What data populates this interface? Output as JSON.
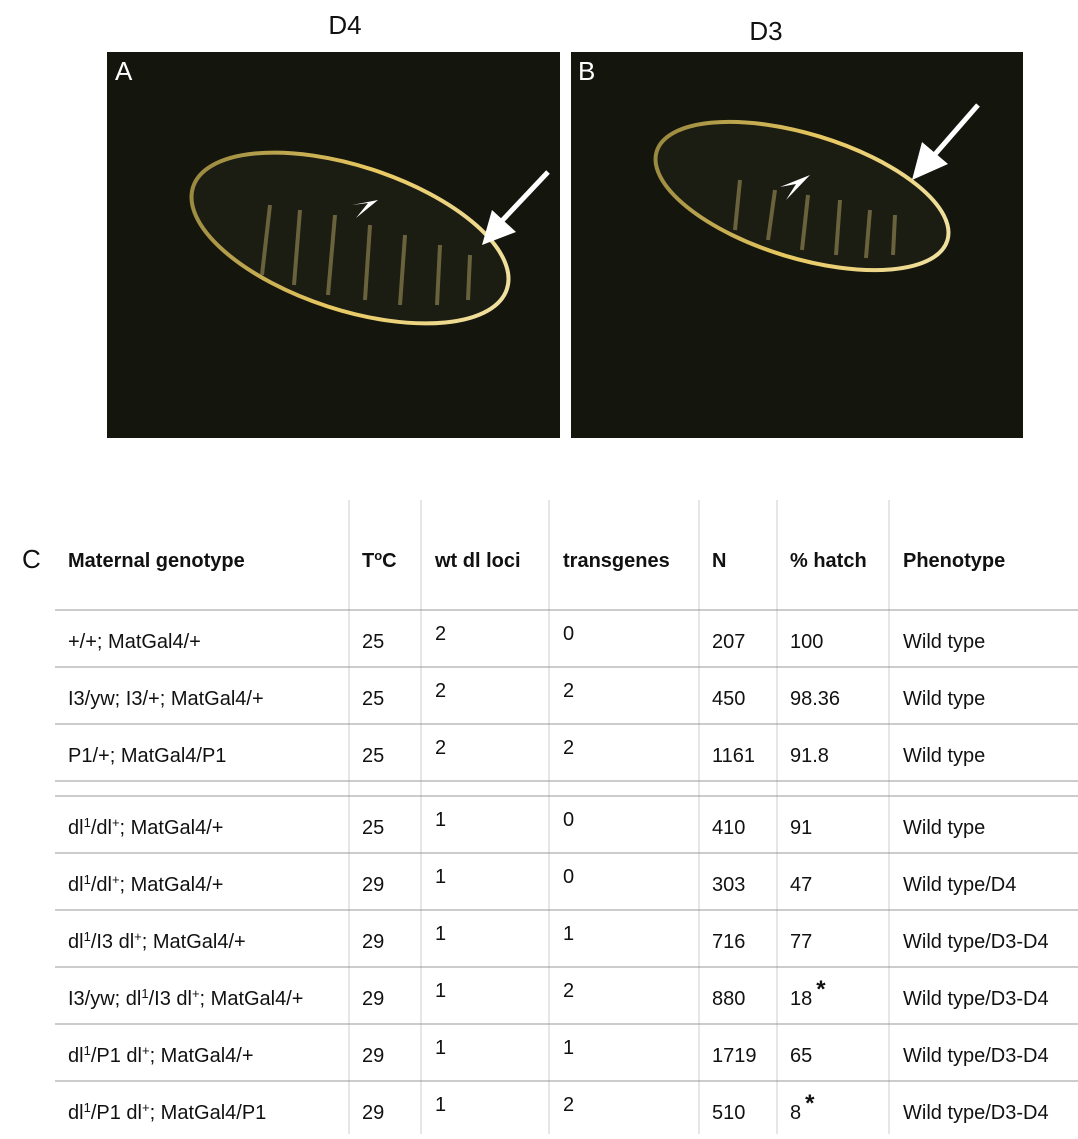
{
  "panels": [
    {
      "heading": "D4",
      "label": "A"
    },
    {
      "heading": "D3",
      "label": "B"
    }
  ],
  "table": {
    "label": "C",
    "header": {
      "genotype": "Maternal genotype",
      "temp": [
        "T",
        "o",
        "C"
      ],
      "loci": "wt dl loci",
      "transgenes": "transgenes",
      "n": "N",
      "hatch": "% hatch",
      "phenotype": "Phenotype"
    },
    "groups": [
      [
        {
          "genotype": [
            "+/+; MatGal4/+"
          ],
          "temp": "25",
          "loci": "2",
          "transgenes": "0",
          "n": "207",
          "hatch": "100",
          "phenotype": "Wild type"
        },
        {
          "genotype": [
            "I3/yw; I3/+; MatGal4/+"
          ],
          "temp": "25",
          "loci": "2",
          "transgenes": "2",
          "n": "450",
          "hatch": "98.36",
          "phenotype": "Wild type"
        },
        {
          "genotype": [
            "P1/+; MatGal4/P1"
          ],
          "temp": "25",
          "loci": "2",
          "transgenes": "2",
          "n": "1161",
          "hatch": "91.8",
          "phenotype": "Wild type"
        }
      ],
      [
        {
          "genotype": [
            "dl",
            "1",
            "/dl",
            "+",
            "; MatGal4/+"
          ],
          "temp": "25",
          "loci": "1",
          "transgenes": "0",
          "n": "410",
          "hatch": "91",
          "phenotype": "Wild type"
        },
        {
          "genotype": [
            "dl",
            "1",
            "/dl",
            "+",
            "; MatGal4/+"
          ],
          "temp": "29",
          "loci": "1",
          "transgenes": "0",
          "n": "303",
          "hatch": "47",
          "phenotype": "Wild type/D4"
        },
        {
          "genotype": [
            "dl",
            "1",
            "/I3 dl",
            "+",
            "; MatGal4/+"
          ],
          "temp": "29",
          "loci": "1",
          "transgenes": "1",
          "n": "716",
          "hatch": "77",
          "phenotype": "Wild type/D3-D4"
        },
        {
          "genotype": [
            "I3/yw; dl",
            "1",
            "/I3 dl",
            "+",
            "; MatGal4/+"
          ],
          "temp": "29",
          "loci": "1",
          "transgenes": "2",
          "n": "880",
          "hatch": "18",
          "note": "*",
          "phenotype": "Wild type/D3-D4"
        },
        {
          "genotype": [
            "dl",
            "1",
            "/P1 dl",
            "+",
            "; MatGal4/+"
          ],
          "temp": "29",
          "loci": "1",
          "transgenes": "1",
          "n": "1719",
          "hatch": "65",
          "phenotype": "Wild type/D3-D4"
        },
        {
          "genotype": [
            "dl",
            "1",
            "/P1 dl",
            "+",
            "; MatGal4/P1"
          ],
          "temp": "29",
          "loci": "1",
          "transgenes": "2",
          "n": "510",
          "hatch": "8",
          "note": "*",
          "phenotype": "Wild type/D3-D4"
        }
      ]
    ]
  }
}
